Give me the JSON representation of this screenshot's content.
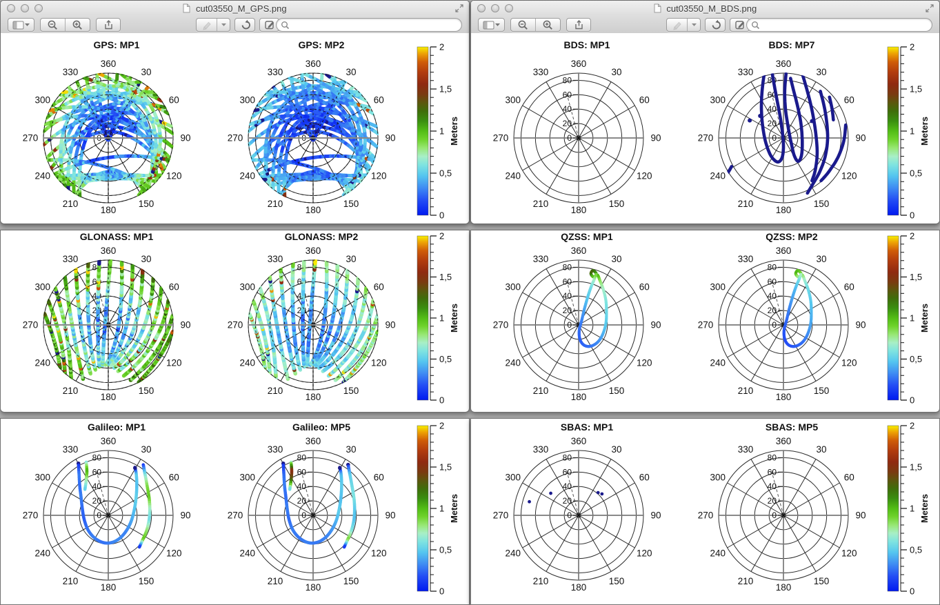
{
  "windows": [
    {
      "title": "cut03550_M_GPS.png",
      "search_placeholder": "",
      "toolbar_icons": [
        "sidebar-panel-icon",
        "magnifier-minus-icon",
        "magnifier-plus-icon",
        "share-icon",
        "highlighter-icon",
        "rotate-left-icon",
        "edit-pencil-icon",
        "search-icon"
      ],
      "rows": [
        {
          "charts": [
            "gps_mp1",
            "gps_mp2"
          ]
        },
        {
          "charts": [
            "glo_mp1",
            "glo_mp2"
          ]
        },
        {
          "charts": [
            "gal_mp1",
            "gal_mp5"
          ]
        }
      ]
    },
    {
      "title": "cut03550_M_BDS.png",
      "search_placeholder": "",
      "toolbar_icons": [
        "sidebar-panel-icon",
        "magnifier-minus-icon",
        "magnifier-plus-icon",
        "share-icon",
        "highlighter-icon",
        "rotate-left-icon",
        "edit-pencil-icon",
        "search-icon"
      ],
      "rows": [
        {
          "charts": [
            "bds_mp1",
            "bds_mp7"
          ]
        },
        {
          "charts": [
            "qzss_mp1",
            "qzss_mp2"
          ]
        },
        {
          "charts": [
            "sbas_mp1",
            "sbas_mp5"
          ]
        }
      ]
    }
  ],
  "skyplot_grid": {
    "azimuth_tick_labels": [
      "30",
      "60",
      "90",
      "120",
      "150",
      "180",
      "210",
      "240",
      "270",
      "300",
      "330",
      "360"
    ],
    "elevation_tick_labels": [
      "0",
      "20",
      "40",
      "60",
      "80"
    ],
    "radial_axis_deg": [
      0,
      90
    ],
    "dashed_radial_azimuth_deg": 345
  },
  "colorbar_spec": {
    "range": [
      0,
      2
    ],
    "major_tick_values": [
      0,
      0.5,
      1,
      1.5,
      2
    ],
    "major_tick_labels": [
      "0",
      "0,5",
      "1",
      "1,5",
      "2"
    ],
    "minor_tick_step": 0.1,
    "label": "Meters",
    "colormap_stops": [
      [
        0.0,
        "#0019f0"
      ],
      [
        0.18,
        "#234df5"
      ],
      [
        0.33,
        "#3f8df3"
      ],
      [
        0.47,
        "#55c6ef"
      ],
      [
        0.6,
        "#7fe4e0"
      ],
      [
        0.7,
        "#a8efc6"
      ],
      [
        0.8,
        "#97e773"
      ],
      [
        0.9,
        "#6fd32c"
      ],
      [
        1.0,
        "#53bd16"
      ],
      [
        1.12,
        "#3a8f10"
      ],
      [
        1.24,
        "#3f6d0a"
      ],
      [
        1.34,
        "#5c560d"
      ],
      [
        1.44,
        "#7a3a10"
      ],
      [
        1.56,
        "#8f2a10"
      ],
      [
        1.7,
        "#b23c0e"
      ],
      [
        1.82,
        "#cf5c08"
      ],
      [
        1.92,
        "#eda104"
      ],
      [
        2.0,
        "#f8ee00"
      ]
    ]
  },
  "gps_passes": [
    [
      300,
      1,
      55,
      1,
      357,
      0.8
    ],
    [
      312,
      1,
      48,
      1,
      359,
      0.62
    ],
    [
      322,
      1,
      38,
      1,
      0,
      0.42
    ],
    [
      331,
      1,
      29,
      1,
      0,
      0.22
    ],
    [
      340,
      1,
      20,
      1,
      358,
      0.08
    ],
    [
      350,
      1,
      8,
      1,
      179,
      0.03
    ],
    [
      288,
      1,
      68,
      1,
      355,
      0.7
    ],
    [
      276,
      1,
      86,
      1,
      352,
      0.48
    ],
    [
      264,
      1,
      98,
      1,
      356,
      0.33
    ],
    [
      252,
      1,
      108,
      1,
      3,
      0.18
    ],
    [
      242,
      1,
      118,
      1,
      2,
      0.1
    ],
    [
      233,
      1,
      127,
      1,
      180,
      0.56
    ],
    [
      222,
      1,
      132,
      1,
      180,
      0.63
    ],
    [
      228,
      1,
      45,
      1,
      317,
      0.55
    ],
    [
      218,
      1,
      62,
      1,
      322,
      0.45
    ],
    [
      212,
      1,
      80,
      1,
      327,
      0.34
    ],
    [
      206,
      1,
      98,
      1,
      333,
      0.28
    ],
    [
      222,
      1,
      30,
      1,
      306,
      0.68
    ],
    [
      132,
      1,
      315,
      1,
      44,
      0.55
    ],
    [
      122,
      1,
      295,
      1,
      28,
      0.38
    ],
    [
      142,
      1,
      338,
      1,
      60,
      0.62
    ],
    [
      112,
      1,
      282,
      1,
      17,
      0.3
    ],
    [
      148,
      1,
      352,
      1,
      70,
      0.72
    ],
    [
      152,
      1,
      12,
      1,
      82,
      0.8
    ],
    [
      210,
      1,
      145,
      1,
      178,
      0.52
    ],
    [
      250,
      1,
      140,
      1,
      195,
      0.44
    ],
    [
      236,
      1,
      110,
      1,
      173,
      0.3
    ],
    [
      125,
      1,
      230,
      1,
      177,
      0.6
    ]
  ],
  "glo_passes": [
    [
      205,
      0.92,
      318,
      1,
      262,
      0.55
    ],
    [
      200,
      0.8,
      330,
      1,
      265,
      0.42
    ],
    [
      196,
      0.72,
      342,
      1,
      268,
      0.3
    ],
    [
      192,
      0.66,
      352,
      1,
      270,
      0.16
    ],
    [
      188,
      0.63,
      2,
      1,
      275,
      0.05
    ],
    [
      184,
      0.62,
      12,
      1,
      95,
      0.16
    ],
    [
      180,
      0.62,
      22,
      1,
      92,
      0.28
    ],
    [
      176,
      0.63,
      32,
      1,
      98,
      0.4
    ],
    [
      172,
      0.67,
      44,
      1,
      102,
      0.53
    ],
    [
      168,
      0.73,
      55,
      1,
      106,
      0.64
    ],
    [
      163,
      0.82,
      68,
      1,
      110,
      0.75
    ],
    [
      158,
      0.92,
      82,
      1,
      116,
      0.85
    ],
    [
      215,
      1,
      305,
      1,
      259,
      0.66
    ],
    [
      222,
      1,
      292,
      1,
      256,
      0.77
    ],
    [
      228,
      1,
      280,
      1,
      253,
      0.87
    ],
    [
      152,
      1,
      96,
      1,
      123,
      0.93
    ]
  ],
  "track_geometry": {
    "gal_u": [
      [
        -0.46,
        0.8
      ],
      [
        -0.45,
        0.62
      ],
      [
        -0.44,
        0.45
      ],
      [
        -0.42,
        0.28
      ],
      [
        -0.4,
        0.1
      ],
      [
        -0.37,
        -0.07
      ],
      [
        -0.31,
        -0.23
      ],
      [
        -0.21,
        -0.35
      ],
      [
        -0.08,
        -0.42
      ],
      [
        0.05,
        -0.42
      ],
      [
        0.17,
        -0.36
      ],
      [
        0.27,
        -0.25
      ],
      [
        0.35,
        -0.1
      ],
      [
        0.4,
        0.08
      ],
      [
        0.43,
        0.28
      ],
      [
        0.44,
        0.48
      ],
      [
        0.43,
        0.65
      ],
      [
        0.41,
        0.74
      ]
    ],
    "gal_right": [
      [
        0.54,
        0.78
      ],
      [
        0.57,
        0.62
      ],
      [
        0.6,
        0.45
      ],
      [
        0.63,
        0.27
      ],
      [
        0.64,
        0.1
      ],
      [
        0.63,
        -0.07
      ],
      [
        0.59,
        -0.24
      ],
      [
        0.53,
        -0.38
      ],
      [
        0.48,
        -0.49
      ]
    ],
    "gal_left": [
      [
        -0.34,
        0.82
      ],
      [
        -0.33,
        0.68
      ],
      [
        -0.34,
        0.54
      ],
      [
        -0.36,
        0.4
      ]
    ],
    "qzss_loop": [
      [
        0.27,
        0.8
      ],
      [
        0.22,
        0.84
      ],
      [
        0.19,
        0.79
      ],
      [
        0.23,
        0.74
      ],
      [
        0.29,
        0.77
      ],
      [
        0.33,
        0.68
      ],
      [
        0.38,
        0.55
      ],
      [
        0.42,
        0.38
      ],
      [
        0.43,
        0.2
      ],
      [
        0.42,
        0.02
      ],
      [
        0.37,
        -0.15
      ],
      [
        0.29,
        -0.27
      ],
      [
        0.18,
        -0.33
      ],
      [
        0.08,
        -0.31
      ],
      [
        0.02,
        -0.22
      ],
      [
        0.01,
        -0.08
      ],
      [
        0.05,
        0.08
      ],
      [
        0.09,
        0.25
      ],
      [
        0.14,
        0.43
      ],
      [
        0.19,
        0.58
      ],
      [
        0.24,
        0.7
      ],
      [
        0.27,
        0.78
      ]
    ]
  },
  "chart_data": [
    {
      "id": "gps_mp1",
      "title": "GPS: MP1",
      "type": "skyplot",
      "style": "dense",
      "stroke_width": 5,
      "passes_ref": "gps_passes",
      "seed": 11,
      "value_model": {
        "base": 0.16,
        "gain": 0.85,
        "exp": 2.2,
        "noise": 0.18,
        "hot_r": 0.8,
        "hot_p": 0.1,
        "cold_p": 0.02
      },
      "summary": "dense GPS tracks, blue near zenith rising to green/yellow/red speckle at horizon, empty sector around azimuth 150-210 low elevation"
    },
    {
      "id": "gps_mp2",
      "title": "GPS: MP2",
      "type": "skyplot",
      "style": "dense",
      "stroke_width": 5,
      "passes_ref": "gps_passes",
      "seed": 23,
      "value_model": {
        "base": 0.12,
        "gain": 0.45,
        "exp": 2.0,
        "noise": 0.12,
        "hot_r": 0.85,
        "hot_p": 0.045,
        "cold_p": 0.03
      },
      "summary": "same GPS tracks, mostly blue/light blue (lower multipath), sparse yellow/navy flecks at rim"
    },
    {
      "id": "glo_mp1",
      "title": "GLONASS: MP1",
      "type": "skyplot",
      "style": "dense",
      "stroke_width": 5.5,
      "passes_ref": "glo_passes",
      "seed": 31,
      "value_model": {
        "base": 0.34,
        "gain": 0.78,
        "exp": 1.7,
        "noise": 0.22,
        "hot_r": 0.6,
        "hot_p": 0.1,
        "cold_p": 0.02
      },
      "summary": "fan of GLONASS arcs converging toward south, green at low elevation with red patches, cyan/blue near center"
    },
    {
      "id": "glo_mp2",
      "title": "GLONASS: MP2",
      "type": "skyplot",
      "style": "dense",
      "stroke_width": 5.5,
      "passes_ref": "glo_passes",
      "seed": 47,
      "value_model": {
        "base": 0.3,
        "gain": 0.5,
        "exp": 1.6,
        "noise": 0.15,
        "hot_r": 0.7,
        "hot_p": 0.05,
        "cold_p": 0.02
      },
      "summary": "same GLONASS fan, mostly cyan/pale green with scattered red specks"
    },
    {
      "id": "gal_mp1",
      "title": "Galileo: MP1",
      "type": "skyplot",
      "style": "colortrack",
      "stroke_width": 4.5,
      "value_scale": 1,
      "tracks": [
        {
          "ref": "gal_u",
          "values": [
            0.05,
            0.3,
            0.25,
            0.3,
            0.25,
            0.22,
            0.27,
            0.3,
            0.26,
            0.3,
            0.33,
            0.3,
            0.38,
            0.45,
            0.52,
            0.45,
            0.5,
            0.05
          ]
        },
        {
          "ref": "gal_right",
          "values": [
            0.05,
            0.6,
            0.85,
            0.95,
            0.7,
            0.55,
            0.8,
            0.95,
            0.05
          ]
        },
        {
          "ref": "gal_left",
          "values": [
            0.55,
            1.05,
            0.75,
            0.5
          ]
        }
      ],
      "summary": "single blue U-shaped pass from NW over south back to NE, plus green arc on east side"
    },
    {
      "id": "gal_mp5",
      "title": "Galileo: MP5",
      "type": "skyplot",
      "style": "colortrack",
      "stroke_width": 4.5,
      "value_scale": 1,
      "tracks": [
        {
          "ref": "gal_u",
          "values": [
            0.05,
            0.25,
            0.3,
            0.25,
            0.3,
            0.25,
            0.3,
            0.27,
            0.3,
            0.28,
            0.3,
            0.33,
            0.4,
            0.5,
            0.45,
            0.5,
            0.45,
            0.05
          ]
        },
        {
          "ref": "gal_right",
          "values": [
            0.05,
            0.5,
            0.55,
            0.6,
            0.5,
            0.45,
            0.6,
            0.9,
            0.05
          ]
        },
        {
          "ref": "gal_left",
          "values": [
            0.6,
            1.55,
            1.3,
            0.5
          ]
        }
      ],
      "summary": "same Galileo geometry, red/olive burst on the NW short arc"
    },
    {
      "id": "bds_mp1",
      "title": "BDS: MP1",
      "type": "skyplot",
      "style": "empty",
      "summary": "empty polar grid, no data"
    },
    {
      "id": "bds_mp7",
      "title": "BDS: MP7",
      "type": "skyplot",
      "style": "strokes",
      "color": "#1a1a8c",
      "stroke_width": 4.6,
      "strokes": [
        [
          [
            -0.3,
            0.97
          ],
          [
            -0.33,
            0.72
          ],
          [
            -0.34,
            0.45
          ],
          [
            -0.32,
            0.18
          ],
          [
            -0.27,
            -0.08
          ],
          [
            -0.19,
            -0.28
          ],
          [
            -0.09,
            -0.37
          ],
          [
            -0.02,
            -0.3
          ],
          [
            0.0,
            -0.12
          ],
          [
            -0.02,
            0.12
          ],
          [
            -0.06,
            0.38
          ],
          [
            -0.11,
            0.64
          ],
          [
            -0.15,
            0.86
          ],
          [
            -0.17,
            0.98
          ]
        ],
        [
          [
            0.04,
            0.99
          ],
          [
            0.02,
            0.74
          ],
          [
            0.03,
            0.46
          ],
          [
            0.07,
            0.18
          ],
          [
            0.12,
            -0.08
          ],
          [
            0.17,
            -0.28
          ],
          [
            0.23,
            -0.36
          ],
          [
            0.28,
            -0.26
          ],
          [
            0.29,
            -0.04
          ],
          [
            0.27,
            0.22
          ],
          [
            0.22,
            0.48
          ],
          [
            0.16,
            0.72
          ],
          [
            0.11,
            0.92
          ]
        ],
        [
          [
            0.57,
            0.72
          ],
          [
            0.63,
            0.48
          ],
          [
            0.67,
            0.22
          ],
          [
            0.68,
            -0.04
          ],
          [
            0.64,
            -0.3
          ],
          [
            0.56,
            -0.52
          ],
          [
            0.46,
            -0.7
          ],
          [
            0.37,
            -0.85
          ]
        ],
        [
          [
            0.3,
            0.96
          ],
          [
            0.38,
            0.68
          ],
          [
            0.45,
            0.38
          ],
          [
            0.5,
            0.06
          ],
          [
            0.52,
            -0.24
          ],
          [
            0.49,
            -0.5
          ],
          [
            0.44,
            -0.66
          ]
        ],
        [
          [
            0.71,
            0.63
          ],
          [
            0.75,
            0.45
          ],
          [
            0.77,
            0.28
          ]
        ],
        [
          [
            0.96,
            0.2
          ],
          [
            0.93,
            -0.05
          ],
          [
            0.84,
            -0.3
          ],
          [
            0.7,
            -0.52
          ],
          [
            0.58,
            -0.66
          ]
        ],
        [
          [
            -0.8,
            -0.44
          ],
          [
            -0.87,
            -0.56
          ],
          [
            -0.93,
            -0.66
          ]
        ]
      ],
      "points": [
        [
          -0.52,
          0.27
        ],
        [
          -0.36,
          0.34
        ],
        [
          0.44,
          0.26
        ]
      ],
      "summary": "thick dark-navy IGSO figure-eight loops north of zenith plus GEO arcs east and short arc SW"
    },
    {
      "id": "qzss_mp1",
      "title": "QZSS: MP1",
      "type": "skyplot",
      "style": "colortrack",
      "stroke_width": 4.2,
      "value_scale": 1,
      "tracks": [
        {
          "ref": "qzss_loop",
          "values": [
            1.05,
            1.2,
            1.3,
            0.95,
            1.1,
            0.85,
            0.7,
            0.62,
            0.55,
            0.5,
            0.42,
            0.33,
            0.28,
            0.24,
            0.22,
            0.25,
            0.3,
            0.38,
            0.48,
            0.55,
            0.68,
            0.9
          ]
        }
      ],
      "summary": "teardrop loop from azimuth ~20 high in sky down past zenith, green/brown at top, blue at bottom"
    },
    {
      "id": "qzss_mp2",
      "title": "QZSS: MP2",
      "type": "skyplot",
      "style": "colortrack",
      "stroke_width": 4.2,
      "value_scale": 0.8,
      "tracks": [
        {
          "ref": "qzss_loop",
          "values": [
            1.05,
            1.2,
            1.3,
            0.95,
            1.1,
            0.85,
            0.7,
            0.62,
            0.55,
            0.5,
            0.42,
            0.33,
            0.28,
            0.24,
            0.22,
            0.25,
            0.3,
            0.38,
            0.48,
            0.55,
            0.68,
            0.9
          ]
        }
      ],
      "summary": "same teardrop, green knot at top, cyan/blue body"
    },
    {
      "id": "sbas_mp1",
      "title": "SBAS: MP1",
      "type": "skyplot",
      "style": "points",
      "color": "#1a1a8c",
      "point_radius": 2.4,
      "points": [
        [
          -0.76,
          0.21
        ],
        [
          -0.43,
          0.34
        ],
        [
          0.3,
          0.35
        ],
        [
          0.36,
          0.33
        ]
      ],
      "summary": "four isolated navy dots, two NW mid-sky and two NE mid-sky"
    },
    {
      "id": "sbas_mp5",
      "title": "SBAS: MP5",
      "type": "skyplot",
      "style": "empty",
      "summary": "empty polar grid, no data"
    }
  ]
}
